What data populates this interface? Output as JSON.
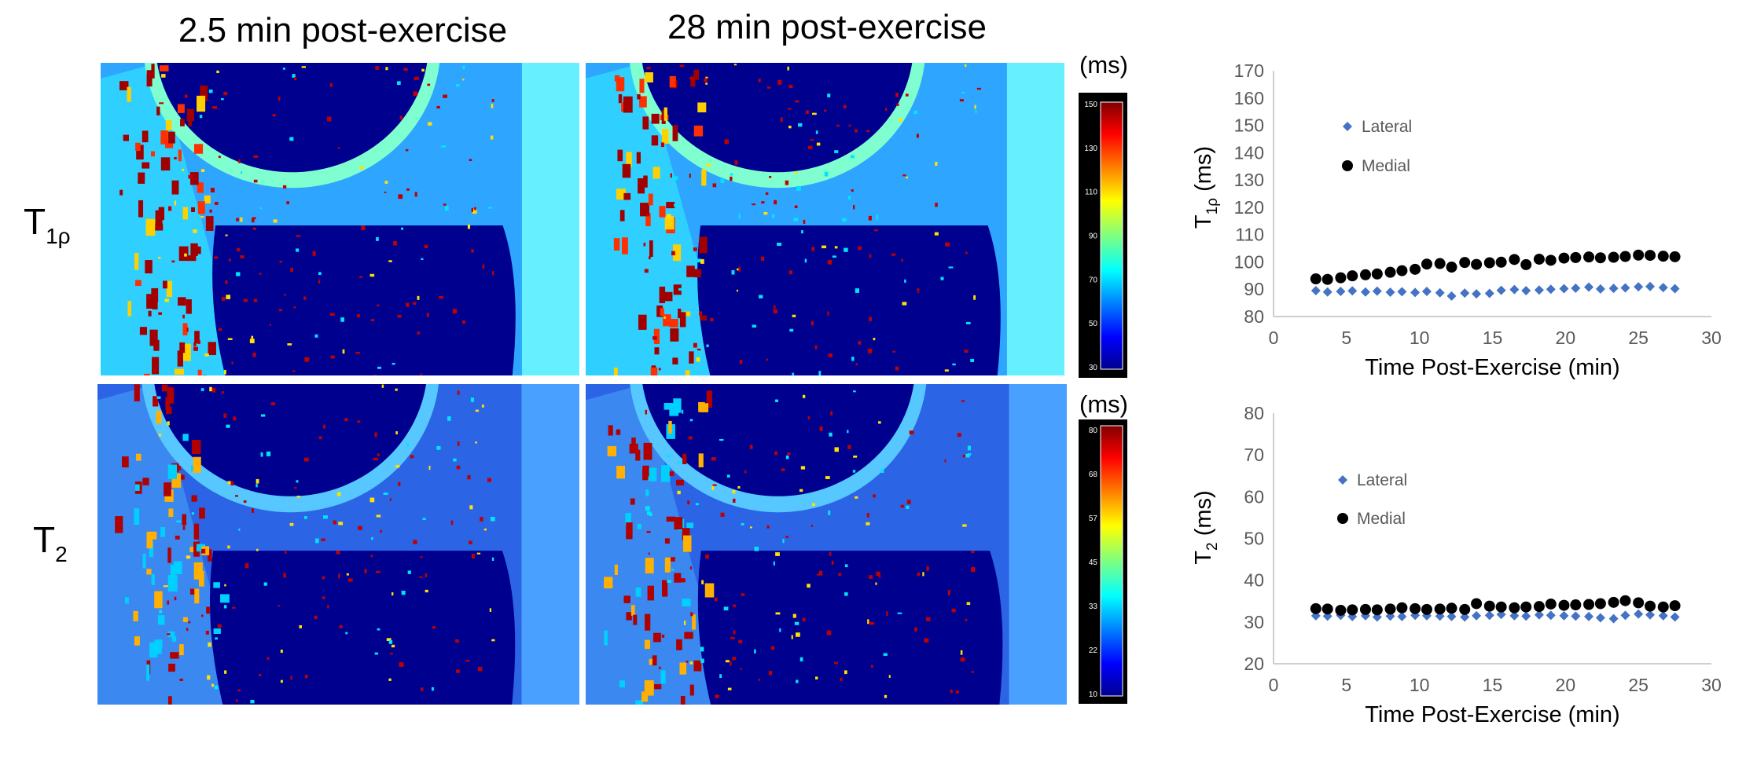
{
  "figure": {
    "col_titles": [
      "2.5 min post-exercise",
      "28 min post-exercise"
    ],
    "rows": [
      {
        "label_main": "T",
        "label_sub": "1ρ",
        "unit": "(ms)",
        "colorbar_ticks": [
          "150",
          "130",
          "110",
          "90",
          "70",
          "50",
          "30"
        ]
      },
      {
        "label_main": "T",
        "label_sub": "2",
        "unit": "(ms)",
        "colorbar_ticks": [
          "80",
          "68",
          "57",
          "45",
          "33",
          "22",
          "10"
        ]
      }
    ]
  },
  "chart_data": [
    {
      "type": "scatter",
      "xlabel": "Time Post-Exercise (min)",
      "ylabel_main": "T",
      "ylabel_sub": "1ρ",
      "ylabel_unit": " (ms)",
      "xlim": [
        0,
        30
      ],
      "ylim": [
        80,
        170
      ],
      "xticks": [
        0,
        5,
        10,
        15,
        20,
        25,
        30
      ],
      "yticks": [
        80,
        90,
        100,
        110,
        120,
        130,
        140,
        150,
        160,
        170
      ],
      "grid": false,
      "legend_position": "upper-left",
      "series": [
        {
          "name": "Lateral",
          "marker": "diamond",
          "color": "#4472C4",
          "x": [
            2.9,
            3.7,
            4.6,
            5.4,
            6.3,
            7.1,
            8.0,
            8.8,
            9.7,
            10.5,
            11.4,
            12.2,
            13.1,
            13.9,
            14.8,
            15.6,
            16.5,
            17.3,
            18.2,
            19.0,
            19.9,
            20.7,
            21.6,
            22.4,
            23.3,
            24.1,
            25.0,
            25.8,
            26.7,
            27.5
          ],
          "values": [
            89.5,
            89.0,
            89.2,
            89.4,
            89.0,
            89.3,
            88.9,
            89.1,
            88.8,
            89.2,
            88.7,
            87.5,
            88.6,
            88.3,
            88.5,
            89.6,
            89.9,
            89.5,
            89.7,
            90.0,
            90.2,
            90.4,
            90.8,
            90.1,
            90.3,
            90.5,
            90.9,
            91.0,
            90.6,
            90.2
          ]
        },
        {
          "name": "Medial",
          "marker": "circle",
          "color": "#000000",
          "x": [
            2.9,
            3.7,
            4.6,
            5.4,
            6.3,
            7.1,
            8.0,
            8.8,
            9.7,
            10.5,
            11.4,
            12.2,
            13.1,
            13.9,
            14.8,
            15.6,
            16.5,
            17.3,
            18.2,
            19.0,
            19.9,
            20.7,
            21.6,
            22.4,
            23.3,
            24.1,
            25.0,
            25.8,
            26.7,
            27.5
          ],
          "values": [
            93.8,
            93.6,
            94.2,
            94.9,
            95.3,
            95.6,
            96.2,
            96.8,
            97.3,
            99.2,
            99.4,
            98.1,
            99.8,
            99.1,
            99.7,
            99.9,
            100.9,
            99.0,
            101.0,
            100.6,
            101.4,
            101.6,
            101.8,
            101.5,
            101.7,
            102.0,
            102.5,
            102.4,
            102.1,
            101.9
          ]
        }
      ]
    },
    {
      "type": "scatter",
      "xlabel": "Time Post-Exercise (min)",
      "ylabel_main": "T",
      "ylabel_sub": "2",
      "ylabel_unit": " (ms)",
      "xlim": [
        0,
        30
      ],
      "ylim": [
        20,
        80
      ],
      "xticks": [
        0,
        5,
        10,
        15,
        20,
        25,
        30
      ],
      "yticks": [
        20,
        30,
        40,
        50,
        60,
        70,
        80
      ],
      "grid": false,
      "legend_position": "upper-left",
      "series": [
        {
          "name": "Lateral",
          "marker": "diamond",
          "color": "#4472C4",
          "x": [
            2.9,
            3.7,
            4.6,
            5.4,
            6.3,
            7.1,
            8.0,
            8.8,
            9.7,
            10.5,
            11.4,
            12.2,
            13.1,
            13.9,
            14.8,
            15.6,
            16.5,
            17.3,
            18.2,
            19.0,
            19.9,
            20.7,
            21.6,
            22.4,
            23.3,
            24.1,
            25.0,
            25.8,
            26.7,
            27.5
          ],
          "values": [
            31.5,
            31.4,
            31.6,
            31.3,
            31.5,
            31.2,
            31.4,
            31.3,
            31.6,
            31.5,
            31.4,
            31.3,
            31.2,
            31.5,
            31.6,
            31.8,
            31.5,
            31.4,
            31.7,
            31.6,
            31.5,
            31.4,
            31.3,
            31.0,
            30.8,
            31.6,
            31.9,
            31.7,
            31.5,
            31.2
          ]
        },
        {
          "name": "Medial",
          "marker": "circle",
          "color": "#000000",
          "x": [
            2.9,
            3.7,
            4.6,
            5.4,
            6.3,
            7.1,
            8.0,
            8.8,
            9.7,
            10.5,
            11.4,
            12.2,
            13.1,
            13.9,
            14.8,
            15.6,
            16.5,
            17.3,
            18.2,
            19.0,
            19.9,
            20.7,
            21.6,
            22.4,
            23.3,
            24.1,
            25.0,
            25.8,
            26.7,
            27.5
          ],
          "values": [
            33.2,
            33.1,
            32.8,
            32.9,
            33.0,
            32.9,
            33.1,
            33.4,
            33.2,
            33.0,
            33.1,
            33.3,
            33.0,
            34.4,
            33.8,
            33.6,
            33.4,
            33.6,
            33.7,
            34.3,
            34.0,
            34.1,
            34.2,
            34.4,
            34.7,
            35.1,
            34.6,
            33.8,
            33.6,
            33.9
          ]
        }
      ]
    }
  ]
}
